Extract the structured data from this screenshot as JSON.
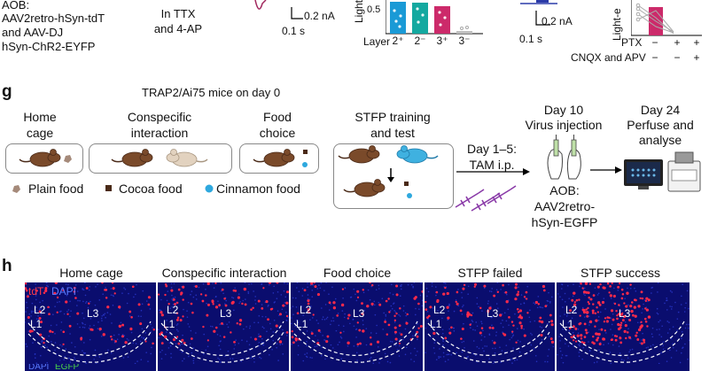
{
  "top": {
    "aob_lines": [
      "AOB:",
      "AAV2retro-hSyn-tdT",
      "and AAV-DJ",
      "hSyn-ChR2-EYFP"
    ],
    "ttx_lines": [
      "In TTX",
      "and 4-AP"
    ],
    "scale1_current": "0.2 nA",
    "scale1_time": "0.1 s",
    "ylabel1": "Light-",
    "layer_label": "Layer",
    "layer_ticks": [
      "2⁺",
      "2⁻",
      "3⁺",
      "3⁻"
    ],
    "scale2_current": "0.2 nA",
    "scale2_time": "0.1 s",
    "ylabel2": "Light-e",
    "ptx_label": "PTX",
    "ptx_vals": [
      "−",
      "+",
      "+"
    ],
    "cnqx_label": "CNQX and APV",
    "cnqx_vals": [
      "−",
      "−",
      "+"
    ],
    "bar_colors": [
      "#1a9ad6",
      "#14a9a0",
      "#cc2a6a",
      "#bfbfbf"
    ],
    "bar_values": [
      0.78,
      0.72,
      0.62,
      0.04
    ]
  },
  "panel_g": {
    "letter": "g",
    "title": "TRAP2/Ai75 mice on day 0",
    "home_cage": [
      "Home",
      "cage"
    ],
    "conspecific": [
      "Conspecific",
      "interaction"
    ],
    "food_choice": [
      "Food",
      "choice"
    ],
    "stfp": [
      "STFP training",
      "and test"
    ],
    "day1": [
      "Day 1–5:",
      "TAM i.p."
    ],
    "day10": [
      "Day 10",
      "Virus injection"
    ],
    "aob": [
      "AOB:",
      "AAV2retro-",
      "hSyn-EGFP"
    ],
    "day24": [
      "Day 24",
      "Perfuse and",
      "analyse"
    ],
    "legend": {
      "plain": "Plain food",
      "cocoa": "Cocoa food",
      "cinnamon": "Cinnamon food"
    },
    "colors": {
      "mouse": "#7a4a2a",
      "mouse_light": "#e2d2bf",
      "mouse_blue": "#3fb1e0",
      "plain": "#a58a7a",
      "cocoa": "#4a2a18",
      "cinnamon": "#2ea8de",
      "syringe": "#8a3aa8"
    }
  },
  "panel_h": {
    "letter": "h",
    "headers": [
      "Home cage",
      "Conspecific interaction",
      "Food choice",
      "STFP failed",
      "STFP success"
    ],
    "stain_tdt": "tdT",
    "stain_dapi": "DAPI",
    "stain_row2_dapi": "DAPI",
    "stain_row2_egfp": "EGFP",
    "layer_l2": "L2",
    "layer_l1": "L1",
    "layer_l3": "L3"
  }
}
